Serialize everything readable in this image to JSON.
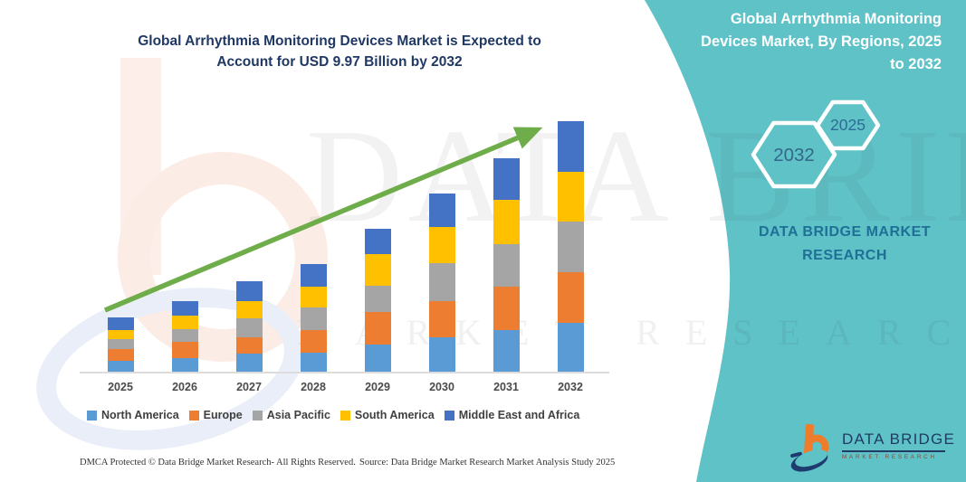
{
  "colors": {
    "teal_panel": "#5EC2C7",
    "title_navy": "#1F3864",
    "arrow_green": "#6FAD4B",
    "axis_gray": "#DCDCDC",
    "hexagon_stroke": "#FFFFFF",
    "brand_teal_text": "#1F6F96",
    "logo_navy": "#203C64",
    "logo_orange": "#EE7D2B"
  },
  "header": {
    "chart_title_lines": [
      "Global Arrhythmia Monitoring Devices Market is Expected to",
      "Account for USD 9.97 Billion by 2032"
    ]
  },
  "chart_data": {
    "type": "bar",
    "stacked": true,
    "title": "Global Arrhythmia Monitoring Devices Market is Expected to Account for USD 9.97 Billion by 2032",
    "categories": [
      "2025",
      "2026",
      "2027",
      "2028",
      "2029",
      "2030",
      "2031",
      "2032"
    ],
    "series": [
      {
        "name": "North America",
        "color": "#5B9BD5",
        "values": [
          12,
          15,
          20,
          21,
          30,
          38,
          46,
          54
        ]
      },
      {
        "name": "Europe",
        "color": "#ED7D31",
        "values": [
          13,
          18,
          18,
          25,
          36,
          40,
          48,
          56
        ]
      },
      {
        "name": "Asia Pacific",
        "color": "#A5A5A5",
        "values": [
          11,
          14,
          21,
          25,
          29,
          42,
          47,
          56
        ]
      },
      {
        "name": "South America",
        "color": "#FFC000",
        "values": [
          10,
          15,
          19,
          23,
          35,
          40,
          49,
          55
        ]
      },
      {
        "name": "Middle East and Africa",
        "color": "#4472C4",
        "values": [
          14,
          16,
          22,
          25,
          28,
          37,
          46,
          56
        ]
      }
    ],
    "totals": [
      60,
      78,
      100,
      119,
      158,
      197,
      236,
      277
    ],
    "unit": "relative stacked-bar height (no y-axis values shown in figure)",
    "annotation": "USD 9.97 Billion by 2032",
    "xlabel": "",
    "ylabel": "",
    "grid": false,
    "legend_position": "bottom",
    "trend_arrow": "upward green arrow across bars"
  },
  "right_panel": {
    "title_lines": [
      "Global Arrhythmia Monitoring",
      "Devices Market, By Regions, 2025",
      "to 2032"
    ],
    "hexagon_back_label": "2032",
    "hexagon_front_label": "2025",
    "brand_lines": [
      "DATA BRIDGE MARKET",
      "RESEARCH"
    ]
  },
  "watermark": {
    "line1": "DATA BRIDGE",
    "line2": "MARKET RESEARCH"
  },
  "logo": {
    "name": "DATA BRIDGE",
    "sub": "MARKET RESEARCH"
  },
  "footer": {
    "left": "DMCA Protected © Data Bridge Market Research-  All Rights Reserved.",
    "right": "Source: Data Bridge Market Research  Market Analysis Study 2025"
  }
}
